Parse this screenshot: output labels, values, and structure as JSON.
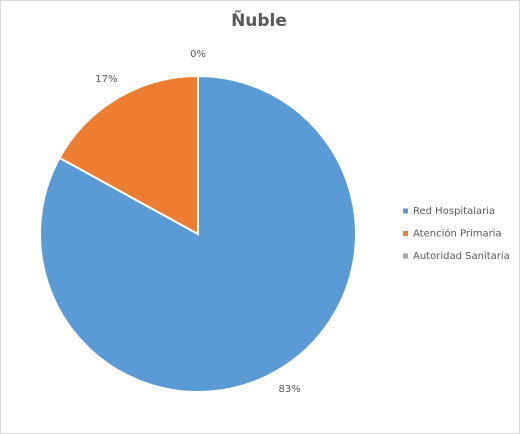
{
  "chart_data": {
    "type": "pie",
    "title": "Ñuble",
    "categories": [
      "Red Hospitalaria",
      "Atención Primaria",
      "Autoridad Sanitaria"
    ],
    "values": [
      83,
      17,
      0
    ],
    "value_labels": [
      "83%",
      "17%",
      "0%"
    ],
    "colors": [
      "#5b9bd5",
      "#ed7d31",
      "#a5a5a5"
    ],
    "legend": "right"
  }
}
